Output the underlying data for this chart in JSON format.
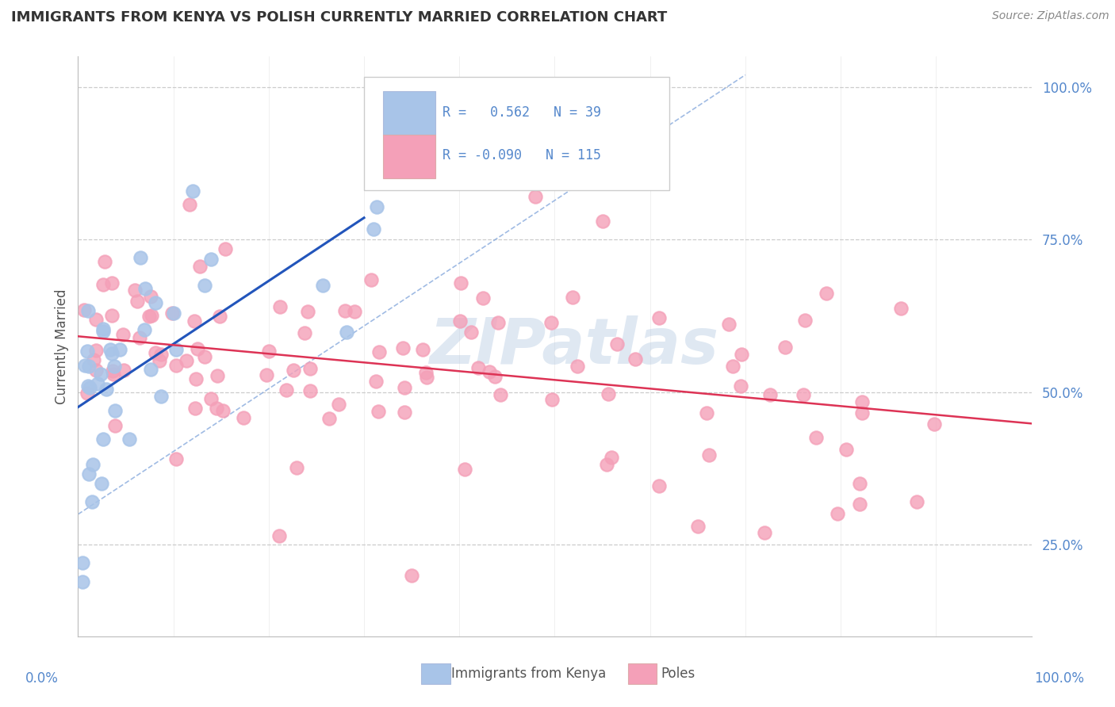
{
  "title": "IMMIGRANTS FROM KENYA VS POLISH CURRENTLY MARRIED CORRELATION CHART",
  "source_text": "Source: ZipAtlas.com",
  "ylabel": "Currently Married",
  "legend_kenya_r": "R =   0.562",
  "legend_kenya_n": "N = 39",
  "legend_poles_r": "R = -0.090",
  "legend_poles_n": "N = 115",
  "kenya_color": "#a8c4e8",
  "poles_color": "#f4a0b8",
  "kenya_line_color": "#2255bb",
  "poles_line_color": "#dd3355",
  "dashed_line_color": "#88aadd",
  "watermark": "ZIPatlas",
  "xmin": 0.0,
  "xmax": 1.0,
  "ymin": 0.1,
  "ymax": 1.05,
  "yticks": [
    0.25,
    0.5,
    0.75,
    1.0
  ],
  "ytick_labels": [
    "25.0%",
    "50.0%",
    "75.0%",
    "100.0%"
  ],
  "background_color": "#ffffff",
  "grid_color": "#cccccc",
  "tick_color": "#5588cc",
  "title_color": "#333333",
  "source_color": "#888888",
  "kenya_seed": 42,
  "poles_seed": 99
}
